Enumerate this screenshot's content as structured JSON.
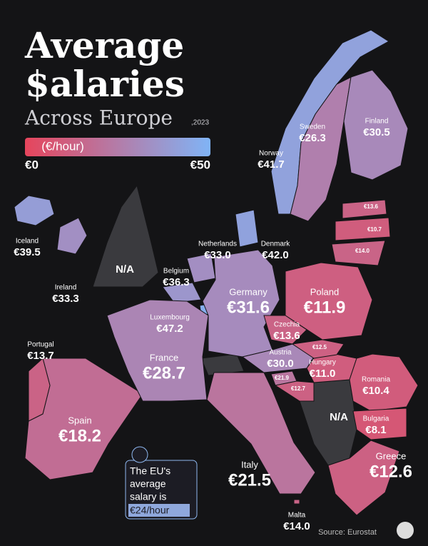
{
  "title_line1": "Average",
  "title_line2": "$alaries",
  "subtitle": "Across Europe",
  "year": ",2023",
  "legend": {
    "unit": "(€/hour)",
    "range": [
      {
        "value": 0,
        "label": "€0"
      },
      {
        "value": 50,
        "label": "€50"
      }
    ],
    "colors": [
      "#e6455c",
      "#80b4f6"
    ]
  },
  "countries": [
    {
      "name": "Norway",
      "value": 41.7,
      "value_label": "€41.7"
    },
    {
      "name": "Sweden",
      "value": 26.3,
      "value_label": "€26.3"
    },
    {
      "name": "Finland",
      "value": 30.5,
      "value_label": "€30.5"
    },
    {
      "name": "Iceland",
      "value": 39.5,
      "value_label": "€39.5"
    },
    {
      "name": "Ireland",
      "value": 33.3,
      "value_label": "€33.3"
    },
    {
      "name": "Netherlands",
      "value": 33.0,
      "value_label": "€33.0"
    },
    {
      "name": "Denmark",
      "value": 42.0,
      "value_label": "€42.0"
    },
    {
      "name": "Belgium",
      "value": 36.3,
      "value_label": "€36.3"
    },
    {
      "name": "Luxembourg",
      "value": 47.2,
      "value_label": "€47.2"
    },
    {
      "name": "Germany",
      "value": 31.6,
      "value_label": "€31.6"
    },
    {
      "name": "Poland",
      "value": 11.9,
      "value_label": "€11.9"
    },
    {
      "name": "Czechia",
      "value": 13.6,
      "value_label": "€13.6"
    },
    {
      "name": "Austria",
      "value": 30.0,
      "value_label": "€30.0"
    },
    {
      "name": "Hungary",
      "value": 11.0,
      "value_label": "€11.0"
    },
    {
      "name": "Romania",
      "value": 10.4,
      "value_label": "€10.4"
    },
    {
      "name": "Bulgaria",
      "value": 8.1,
      "value_label": "€8.1"
    },
    {
      "name": "Greece",
      "value": 12.6,
      "value_label": "€12.6"
    },
    {
      "name": "Italy",
      "value": 21.5,
      "value_label": "€21.5"
    },
    {
      "name": "Malta",
      "value": 14.0,
      "value_label": "€14.0"
    },
    {
      "name": "Spain",
      "value": 18.2,
      "value_label": "€18.2"
    },
    {
      "name": "Portugal",
      "value": 13.7,
      "value_label": "€13.7"
    },
    {
      "name": "France",
      "value": 28.7,
      "value_label": "€28.7"
    },
    {
      "name": null,
      "value": 13.6,
      "value_label": "€13.6"
    },
    {
      "name": null,
      "value": 10.7,
      "value_label": "€10.7"
    },
    {
      "name": null,
      "value": 14.0,
      "value_label": "€14.0"
    },
    {
      "name": null,
      "value": 12.5,
      "value_label": "€12.5"
    },
    {
      "name": null,
      "value": 21.9,
      "value_label": "€21.9"
    },
    {
      "name": null,
      "value": 12.7,
      "value_label": "€12.7"
    }
  ],
  "not_available": [
    "N/A",
    "N/A"
  ],
  "callout": [
    "The EU's",
    "average",
    "salary is",
    "€24/hour"
  ],
  "source": "Source: Eurostat"
}
